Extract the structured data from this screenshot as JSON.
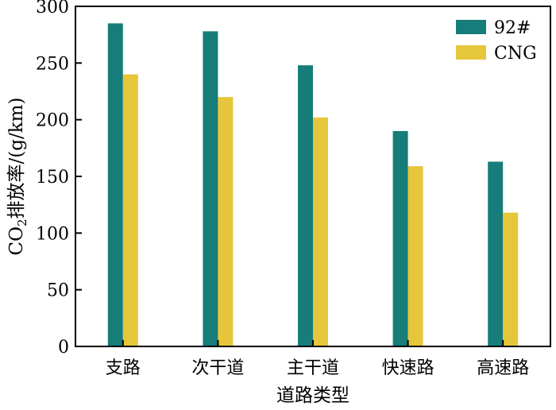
{
  "chart_data": {
    "type": "bar",
    "categories": [
      "支路",
      "次干道",
      "主干道",
      "快速路",
      "高速路"
    ],
    "series": [
      {
        "name": "92#",
        "values": [
          285,
          278,
          248,
          190,
          163
        ],
        "color": "#167d7a"
      },
      {
        "name": "CNG",
        "values": [
          240,
          220,
          202,
          159,
          118
        ],
        "color": "#e6c63a"
      }
    ],
    "xlabel": "道路类型",
    "ylabel": {
      "prefix": "CO",
      "subscript": "2",
      "suffix": "排放率/(g/km)"
    },
    "ylim": [
      0,
      300
    ],
    "yticks": [
      0,
      50,
      100,
      150,
      200,
      250,
      300
    ],
    "grid": false,
    "legend_position": "top-right"
  }
}
